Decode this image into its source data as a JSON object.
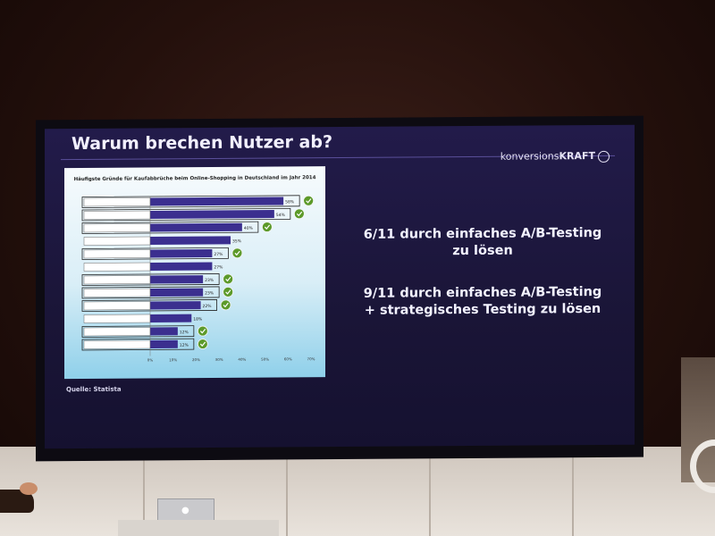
{
  "slide": {
    "title": "Warum brechen Nutzer ab?",
    "brand_light": "konversions",
    "brand_bold": "KRAFT",
    "source": "Quelle: Statista",
    "claims": [
      {
        "line1": "6/11 durch einfaches A/B-Testing",
        "line2": "zu lösen"
      },
      {
        "line1": "9/11 durch einfaches A/B-Testing",
        "line2": "+ strategisches Testing zu lösen"
      }
    ]
  },
  "chart_data": {
    "type": "bar",
    "title": "Häufigste Gründe für Kaufabbrüche beim Online-Shopping in Deutschland im Jahr 2014",
    "orientation": "horizontal",
    "values": [
      58,
      54,
      40,
      35,
      27,
      27,
      23,
      23,
      22,
      18,
      12,
      12
    ],
    "data_labels": [
      "58%",
      "54%",
      "40%",
      "35%",
      "27%",
      "27%",
      "23%",
      "23%",
      "22%",
      "18%",
      "12%",
      "12%"
    ],
    "xticks": [
      "0%",
      "10%",
      "20%",
      "30%",
      "40%",
      "50%",
      "60%",
      "70%"
    ],
    "xlim": [
      0,
      70
    ],
    "checked": [
      true,
      true,
      true,
      false,
      true,
      false,
      true,
      true,
      true,
      false,
      true,
      true
    ],
    "bar_color": "#3b2f8f",
    "check_color": "#5c9a2a"
  }
}
